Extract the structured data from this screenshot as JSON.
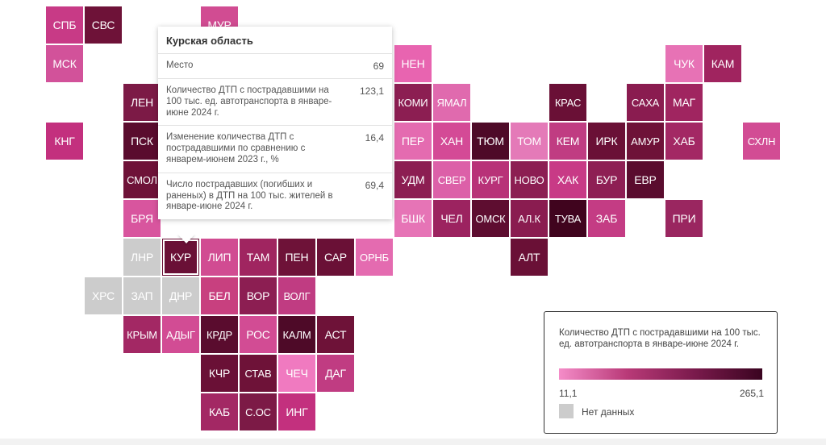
{
  "tooltip": {
    "title": "Курская область",
    "rows": [
      {
        "label": "Место",
        "value": "69"
      },
      {
        "label": "Количество ДТП с пострадавшими на 100 тыс. ед. автотранспорта в январе-июне 2024 г.",
        "value": "123,1"
      },
      {
        "label": "Изменение количества ДТП с пострадавшими по сравнению с январем-июнем 2023 г., %",
        "value": "16,4"
      },
      {
        "label": "Число пострадавших (погибших и раненых) в ДТП на 100 тыс. жителей в январе-июне 2024 г.",
        "value": "69,4"
      }
    ]
  },
  "legend": {
    "title": "Количество ДТП с пострадавшими на 100 тыс. ед. автотранспорта в январе-июне 2024 г.",
    "min": "11,1",
    "max": "265,1",
    "nodata_label": "Нет данных",
    "colors": [
      "#f48cc8",
      "#b93a78",
      "#7a1a4c",
      "#3a0420"
    ],
    "nodata_color": "#cccccc"
  },
  "regions": [
    {
      "code": "СПБ",
      "col": 1,
      "row": 0,
      "color": "#c83a86"
    },
    {
      "code": "СВС",
      "col": 2,
      "row": 0,
      "color": "#6e1238"
    },
    {
      "code": "МУР",
      "col": 5,
      "row": 0,
      "color": "#d14c92"
    },
    {
      "code": "МСК",
      "col": 1,
      "row": 1,
      "color": "#d2529a"
    },
    {
      "code": "НЕН",
      "col": 10,
      "row": 1,
      "color": "#e864b0"
    },
    {
      "code": "ЧУК",
      "col": 17,
      "row": 1,
      "color": "#e772b5"
    },
    {
      "code": "КАМ",
      "col": 18,
      "row": 1,
      "color": "#a0245f"
    },
    {
      "code": "ЛЕН",
      "col": 3,
      "row": 2,
      "color": "#7c1a46"
    },
    {
      "code": "КОМИ",
      "col": 10,
      "row": 2,
      "color": "#8c1e52"
    },
    {
      "code": "ЯМАЛ",
      "col": 11,
      "row": 2,
      "color": "#e06aae"
    },
    {
      "code": "КРАС",
      "col": 14,
      "row": 2,
      "color": "#6a1036"
    },
    {
      "code": "САХА",
      "col": 16,
      "row": 2,
      "color": "#8a1c50"
    },
    {
      "code": "МАГ",
      "col": 17,
      "row": 2,
      "color": "#a02560"
    },
    {
      "code": "КНГ",
      "col": 1,
      "row": 3,
      "color": "#c3307e"
    },
    {
      "code": "ПСК",
      "col": 3,
      "row": 3,
      "color": "#5a0c2e"
    },
    {
      "code": "ПЕР",
      "col": 10,
      "row": 3,
      "color": "#e46bb0"
    },
    {
      "code": "ХАН",
      "col": 11,
      "row": 3,
      "color": "#d44a96"
    },
    {
      "code": "ТЮМ",
      "col": 12,
      "row": 3,
      "color": "#4e0a28"
    },
    {
      "code": "ТОМ",
      "col": 13,
      "row": 3,
      "color": "#e47ab8"
    },
    {
      "code": "КЕМ",
      "col": 14,
      "row": 3,
      "color": "#c03c82"
    },
    {
      "code": "ИРК",
      "col": 15,
      "row": 3,
      "color": "#6a1036"
    },
    {
      "code": "АМУР",
      "col": 16,
      "row": 3,
      "color": "#6e1238"
    },
    {
      "code": "ХАБ",
      "col": 17,
      "row": 3,
      "color": "#a32864"
    },
    {
      "code": "СХЛН",
      "col": 19,
      "row": 3,
      "color": "#d24c94"
    },
    {
      "code": "СМОЛ",
      "col": 3,
      "row": 4,
      "color": "#6e1238"
    },
    {
      "code": "УДМ",
      "col": 10,
      "row": 4,
      "color": "#8c1e52"
    },
    {
      "code": "СВЕР",
      "col": 11,
      "row": 4,
      "color": "#dc60a8"
    },
    {
      "code": "КУРГ",
      "col": 12,
      "row": 4,
      "color": "#b83278"
    },
    {
      "code": "НОВО",
      "col": 13,
      "row": 4,
      "color": "#8c1e52"
    },
    {
      "code": "ХАК",
      "col": 14,
      "row": 4,
      "color": "#c83a86"
    },
    {
      "code": "БУР",
      "col": 15,
      "row": 4,
      "color": "#8e1f54"
    },
    {
      "code": "ЕВР",
      "col": 16,
      "row": 4,
      "color": "#5a0c2e"
    },
    {
      "code": "БРЯ",
      "col": 3,
      "row": 5,
      "color": "#d8559e"
    },
    {
      "code": "БШК",
      "col": 10,
      "row": 5,
      "color": "#e674b6"
    },
    {
      "code": "ЧЕЛ",
      "col": 11,
      "row": 5,
      "color": "#9c2360"
    },
    {
      "code": "ОМСК",
      "col": 12,
      "row": 5,
      "color": "#5e0d30"
    },
    {
      "code": "АЛ.К",
      "col": 13,
      "row": 5,
      "color": "#8a1c50"
    },
    {
      "code": "ТУВА",
      "col": 14,
      "row": 5,
      "color": "#40041e"
    },
    {
      "code": "ЗАБ",
      "col": 15,
      "row": 5,
      "color": "#c43c84"
    },
    {
      "code": "ПРИ",
      "col": 17,
      "row": 5,
      "color": "#9a2660"
    },
    {
      "code": "ЛНР",
      "col": 3,
      "row": 6,
      "color": "#cccccc",
      "nodata": true
    },
    {
      "code": "КУР",
      "col": 4,
      "row": 6,
      "color": "#6a1036",
      "selected": true
    },
    {
      "code": "ЛИП",
      "col": 5,
      "row": 6,
      "color": "#d14c92"
    },
    {
      "code": "ТАМ",
      "col": 6,
      "row": 6,
      "color": "#a02560"
    },
    {
      "code": "ПЕН",
      "col": 7,
      "row": 6,
      "color": "#6e1238"
    },
    {
      "code": "САР",
      "col": 8,
      "row": 6,
      "color": "#6a1036"
    },
    {
      "code": "ОРНБ",
      "col": 9,
      "row": 6,
      "color": "#e46bb0"
    },
    {
      "code": "АЛТ",
      "col": 13,
      "row": 6,
      "color": "#6a1036"
    },
    {
      "code": "ХРС",
      "col": 2,
      "row": 7,
      "color": "#cccccc",
      "nodata": true
    },
    {
      "code": "ЗАП",
      "col": 3,
      "row": 7,
      "color": "#cccccc",
      "nodata": true
    },
    {
      "code": "ДНР",
      "col": 4,
      "row": 7,
      "color": "#cccccc",
      "nodata": true
    },
    {
      "code": "БЕЛ",
      "col": 5,
      "row": 7,
      "color": "#c8407f"
    },
    {
      "code": "ВОР",
      "col": 6,
      "row": 7,
      "color": "#8c1e52"
    },
    {
      "code": "ВОЛГ",
      "col": 7,
      "row": 7,
      "color": "#c03c82"
    },
    {
      "code": "КРЫМ",
      "col": 3,
      "row": 8,
      "color": "#a32864"
    },
    {
      "code": "АДЫГ",
      "col": 4,
      "row": 8,
      "color": "#d24c94"
    },
    {
      "code": "КРДР",
      "col": 5,
      "row": 8,
      "color": "#5a0c2e"
    },
    {
      "code": "РОС",
      "col": 6,
      "row": 8,
      "color": "#d24c94"
    },
    {
      "code": "КАЛМ",
      "col": 7,
      "row": 8,
      "color": "#4e0a28"
    },
    {
      "code": "АСТ",
      "col": 8,
      "row": 8,
      "color": "#6e1238"
    },
    {
      "code": "КЧР",
      "col": 5,
      "row": 9,
      "color": "#6a1036"
    },
    {
      "code": "СТАВ",
      "col": 6,
      "row": 9,
      "color": "#6e1238"
    },
    {
      "code": "ЧЕЧ",
      "col": 7,
      "row": 9,
      "color": "#f07ac0"
    },
    {
      "code": "ДАГ",
      "col": 8,
      "row": 9,
      "color": "#c03c82"
    },
    {
      "code": "КАБ",
      "col": 5,
      "row": 10,
      "color": "#a32864"
    },
    {
      "code": "С.ОС",
      "col": 6,
      "row": 10,
      "color": "#7c1a46"
    },
    {
      "code": "ИНГ",
      "col": 7,
      "row": 10,
      "color": "#c3307e"
    }
  ]
}
